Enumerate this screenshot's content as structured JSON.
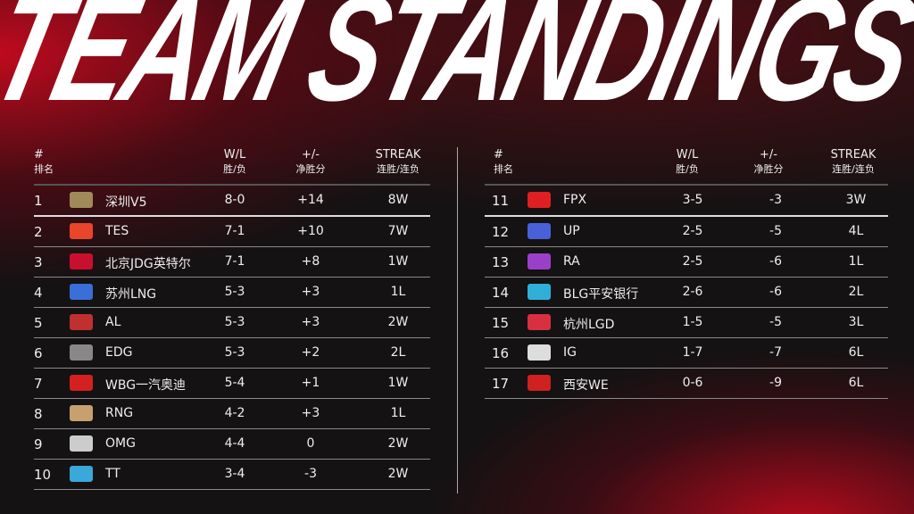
{
  "title": "TEAM STANDINGS",
  "headers": {
    "rank": "#",
    "rank_cn": "排名",
    "wl": "W/L",
    "wl_cn": "胜/负",
    "pm": "+/-",
    "pm_cn": "净胜分",
    "streak": "STREAK",
    "streak_cn": "连胜/连负"
  },
  "left": [
    {
      "rank": "1",
      "name": "深圳V5",
      "wl": "8-0",
      "pm": "+14",
      "streak": "8W",
      "logo": "v5-logo",
      "color": "#a08a5a"
    },
    {
      "rank": "2",
      "name": "TES",
      "wl": "7-1",
      "pm": "+10",
      "streak": "7W",
      "logo": "tes-logo",
      "color": "#e8452a"
    },
    {
      "rank": "3",
      "name": "北京JDG英特尔",
      "wl": "7-1",
      "pm": "+8",
      "streak": "1W",
      "logo": "jdg-logo",
      "color": "#c8102e"
    },
    {
      "rank": "4",
      "name": "苏州LNG",
      "wl": "5-3",
      "pm": "+3",
      "streak": "1L",
      "logo": "lng-logo",
      "color": "#3a6ed8"
    },
    {
      "rank": "5",
      "name": "AL",
      "wl": "5-3",
      "pm": "+3",
      "streak": "2W",
      "logo": "al-logo",
      "color": "#c03030"
    },
    {
      "rank": "6",
      "name": "EDG",
      "wl": "5-3",
      "pm": "+2",
      "streak": "2L",
      "logo": "edg-logo",
      "color": "#888888"
    },
    {
      "rank": "7",
      "name": "WBG一汽奥迪",
      "wl": "5-4",
      "pm": "+1",
      "streak": "1W",
      "logo": "wbg-logo",
      "color": "#d42020"
    },
    {
      "rank": "8",
      "name": "RNG",
      "wl": "4-2",
      "pm": "+3",
      "streak": "1L",
      "logo": "rng-logo",
      "color": "#c8a070"
    },
    {
      "rank": "9",
      "name": "OMG",
      "wl": "4-4",
      "pm": "0",
      "streak": "2W",
      "logo": "omg-logo",
      "color": "#cccccc"
    },
    {
      "rank": "10",
      "name": "TT",
      "wl": "3-4",
      "pm": "-3",
      "streak": "2W",
      "logo": "tt-logo",
      "color": "#3aa8d8"
    }
  ],
  "right": [
    {
      "rank": "11",
      "name": "FPX",
      "wl": "3-5",
      "pm": "-3",
      "streak": "3W",
      "logo": "fpx-logo",
      "color": "#e02020"
    },
    {
      "rank": "12",
      "name": "UP",
      "wl": "2-5",
      "pm": "-5",
      "streak": "4L",
      "logo": "up-logo",
      "color": "#4a60d8"
    },
    {
      "rank": "13",
      "name": "RA",
      "wl": "2-5",
      "pm": "-6",
      "streak": "1L",
      "logo": "ra-logo",
      "color": "#9a40c8"
    },
    {
      "rank": "14",
      "name": "BLG平安银行",
      "wl": "2-6",
      "pm": "-6",
      "streak": "2L",
      "logo": "blg-logo",
      "color": "#30b0d8"
    },
    {
      "rank": "15",
      "name": "杭州LGD",
      "wl": "1-5",
      "pm": "-5",
      "streak": "3L",
      "logo": "lgd-logo",
      "color": "#d83040"
    },
    {
      "rank": "16",
      "name": "IG",
      "wl": "1-7",
      "pm": "-7",
      "streak": "6L",
      "logo": "ig-logo",
      "color": "#dddddd"
    },
    {
      "rank": "17",
      "name": "西安WE",
      "wl": "0-6",
      "pm": "-9",
      "streak": "6L",
      "logo": "we-logo",
      "color": "#d02020"
    }
  ]
}
